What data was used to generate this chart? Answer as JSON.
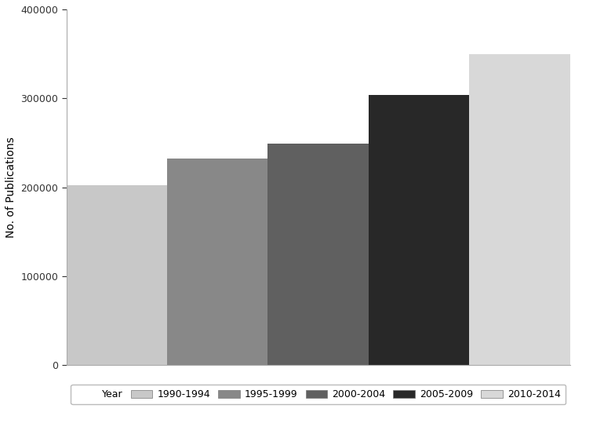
{
  "categories": [
    "1990-1994",
    "1995-1999",
    "2000-2004",
    "2005-2009",
    "2010-2014"
  ],
  "values": [
    202000,
    232000,
    249000,
    304000,
    350000
  ],
  "bar_colors": [
    "#c8c8c8",
    "#888888",
    "#606060",
    "#282828",
    "#d8d8d8"
  ],
  "ylabel": "No. of Publications",
  "ylim": [
    0,
    400000
  ],
  "yticks": [
    0,
    100000,
    200000,
    300000,
    400000
  ],
  "legend_label": "Year",
  "background_color": "#ffffff",
  "edge_color": "#555555",
  "figsize": [
    7.56,
    5.67
  ],
  "dpi": 100
}
